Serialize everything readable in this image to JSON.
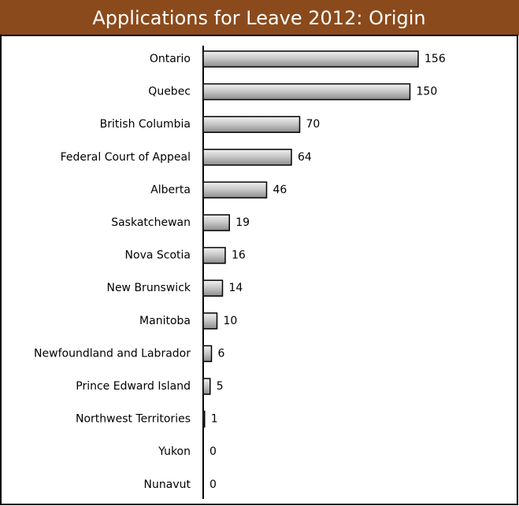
{
  "chart_data": {
    "type": "bar",
    "orientation": "horizontal",
    "title": "Applications for Leave 2012: Origin",
    "categories": [
      "Ontario",
      "Quebec",
      "British Columbia",
      "Federal Court of Appeal",
      "Alberta",
      "Saskatchewan",
      "Nova Scotia",
      "New Brunswick",
      "Manitoba",
      "Newfoundland and Labrador",
      "Prince Edward Island",
      "Northwest Territories",
      "Yukon",
      "Nunavut"
    ],
    "values": [
      156,
      150,
      70,
      64,
      46,
      19,
      16,
      14,
      10,
      6,
      5,
      1,
      0,
      0
    ],
    "color": "#b0b0b0"
  }
}
